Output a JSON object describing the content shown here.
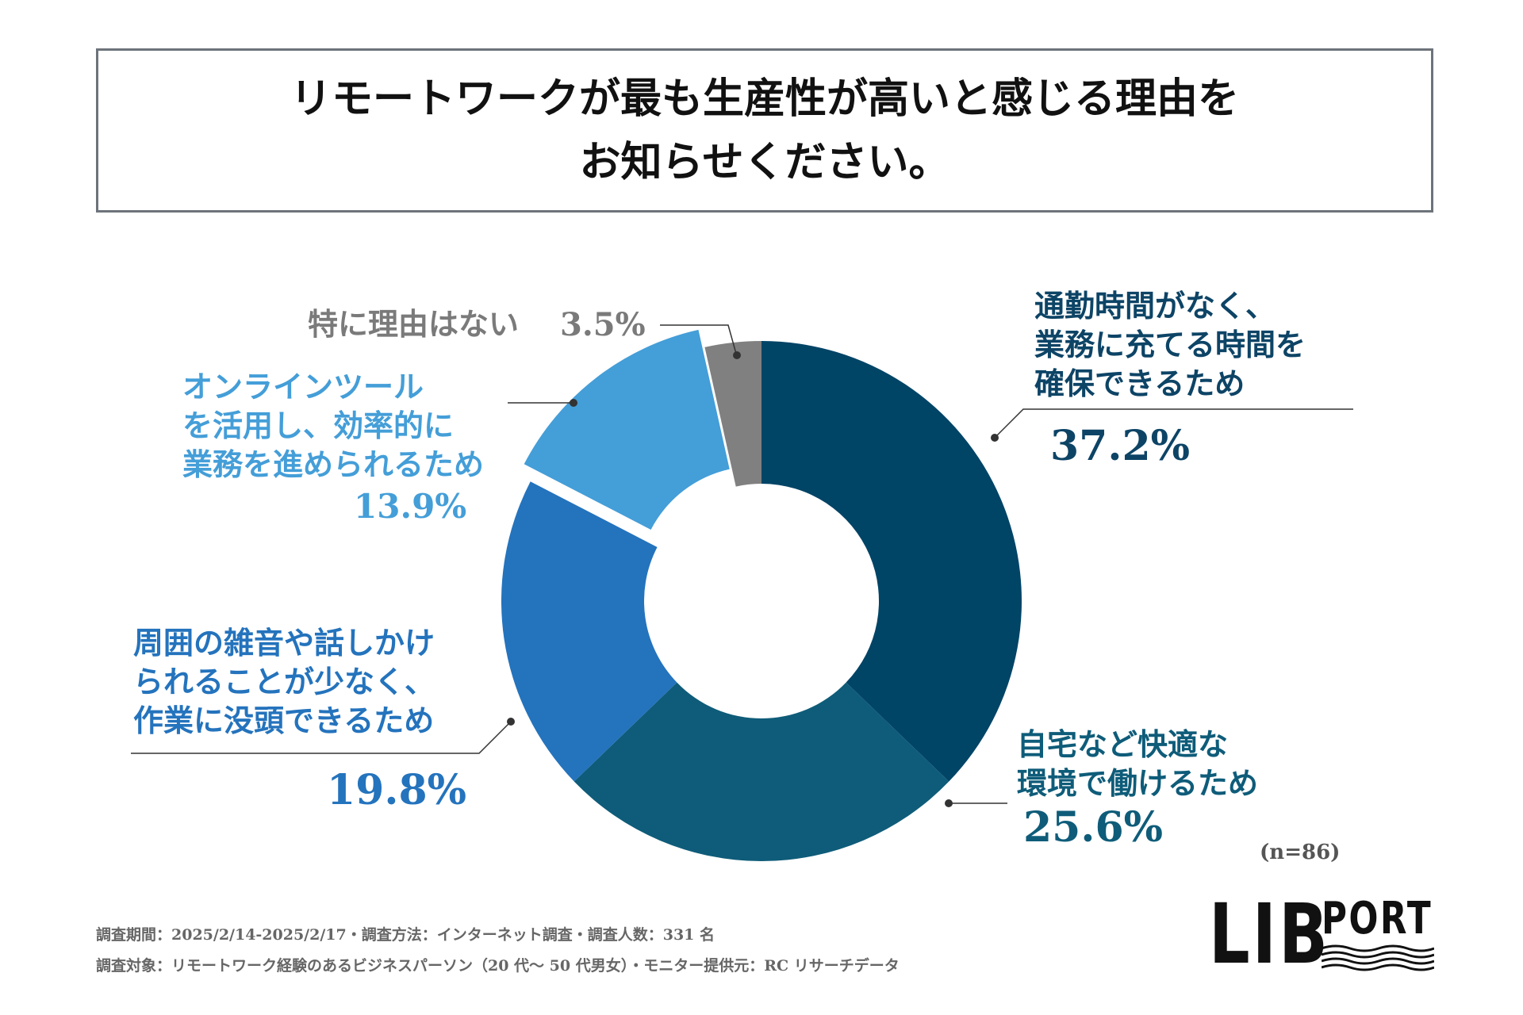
{
  "title": {
    "line1": "リモートワークが最も生産性が高いと感じる理由を",
    "line2": "お知らせください。"
  },
  "chart_data": {
    "type": "pie",
    "title": "リモートワークが最も生産性が高いと感じる理由をお知らせください。",
    "legend": "none",
    "slices": [
      {
        "label": "通勤時間がなく、業務に充てる時間を確保できるため",
        "lines": [
          "通勤時間がなく、",
          "業務に充てる時間を",
          "確保できるため"
        ],
        "value": 37.2,
        "display": "37.2%",
        "color": "#004466"
      },
      {
        "label": "自宅など快適な環境で働けるため",
        "lines": [
          "自宅など快適な",
          "環境で働けるため"
        ],
        "value": 25.6,
        "display": "25.6%",
        "color": "#0e5c79"
      },
      {
        "label": "周囲の雑音や話しかけられることが少なく、作業に没頭できるため",
        "lines": [
          "周囲の雑音や話しかけ",
          "られることが少なく、",
          "作業に没頭できるため"
        ],
        "value": 19.8,
        "display": "19.8%",
        "color": "#2473bd"
      },
      {
        "label": "オンラインツールを活用し、効率的に業務を進められるため",
        "lines": [
          "オンラインツール",
          "を活用し、効率的に",
          "業務を進められるため"
        ],
        "value": 13.9,
        "display": "13.9%",
        "color": "#449ed8"
      },
      {
        "label": "特に理由はない",
        "lines": [
          "特に理由はない"
        ],
        "value": 3.5,
        "display": "3.5%",
        "color": "#808080"
      }
    ]
  },
  "sample_size": "(n=86)",
  "footer": {
    "line1": "調査期間：2025/2/14-2025/2/17・調査方法：インターネット調査・調査人数：331 名",
    "line2": "調査対象：リモートワーク経験のあるビジネスパーソン（20 代〜 50 代男女）・モニター提供元：RC リサーチデータ"
  },
  "logo": {
    "big": "LIB",
    "small": "PORT"
  },
  "colors": {
    "text_slice0": "#0d4466",
    "text_slice1": "#0e5c79",
    "text_slice2": "#2473bd",
    "text_slice3": "#449ed8",
    "text_slice4": "#7a7a7a"
  }
}
